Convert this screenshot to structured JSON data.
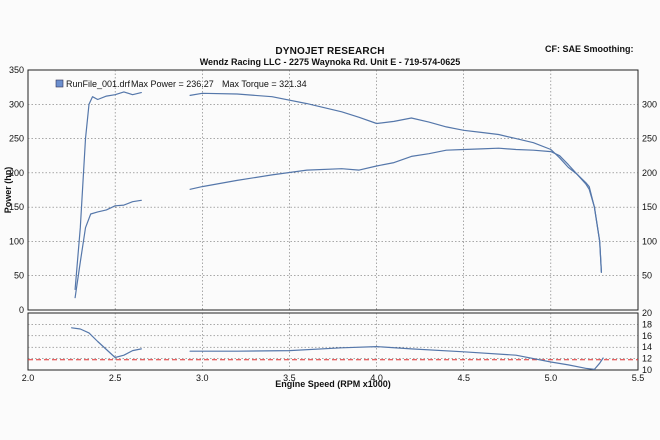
{
  "header": {
    "title": "DYNOJET RESEARCH",
    "subtitle": "Wendz Racing LLC - 2275 Waynoka Rd. Unit E - 719-574-0625",
    "corner": "CF: SAE  Smoothing:"
  },
  "legend": {
    "file_label": "RunFile_001.drf",
    "max_power_label": "Max Power = 236.27",
    "max_torque_label": "Max Torque = 321.34"
  },
  "colors": {
    "trace": "#5577aa",
    "grid": "#555555",
    "afr_target": "#e03030",
    "frame": "#222222"
  },
  "chart_data": [
    {
      "type": "line",
      "title": "",
      "xlabel": "Engine Speed (RPM x1000)",
      "ylabel": "Power (hp)",
      "y2label": "",
      "xlim": [
        2.0,
        5.5
      ],
      "ylim": [
        0,
        350
      ],
      "x_ticks": [
        "2.0",
        "2.5",
        "3.0",
        "3.5",
        "4.0",
        "4.5",
        "5.0",
        "5.5"
      ],
      "y_ticks": [
        "0",
        "50",
        "100",
        "150",
        "200",
        "250",
        "300",
        "350"
      ],
      "y2_ticks": [
        "300",
        "250",
        "200",
        "150",
        "100",
        "50"
      ],
      "grid": true,
      "legend_position": "top-left",
      "series": [
        {
          "name": "",
          "segments": [
            [
              [
                2.27,
                30
              ],
              [
                2.3,
                120
              ],
              [
                2.33,
                250
              ],
              [
                2.35,
                300
              ],
              [
                2.37,
                311
              ],
              [
                2.4,
                307
              ],
              [
                2.45,
                312
              ],
              [
                2.5,
                314
              ],
              [
                2.55,
                318
              ],
              [
                2.6,
                314
              ],
              [
                2.65,
                317
              ]
            ],
            [
              [
                2.93,
                313
              ],
              [
                3.0,
                316
              ],
              [
                3.2,
                315
              ],
              [
                3.4,
                311
              ],
              [
                3.6,
                301
              ],
              [
                3.8,
                289
              ],
              [
                3.9,
                281
              ],
              [
                4.0,
                272
              ],
              [
                4.1,
                275
              ],
              [
                4.2,
                280
              ],
              [
                4.3,
                274
              ],
              [
                4.4,
                267
              ],
              [
                4.5,
                262
              ],
              [
                4.6,
                259
              ],
              [
                4.7,
                256
              ],
              [
                4.8,
                250
              ],
              [
                4.9,
                244
              ],
              [
                5.0,
                234
              ],
              [
                5.05,
                222
              ],
              [
                5.1,
                208
              ],
              [
                5.15,
                198
              ],
              [
                5.2,
                186
              ],
              [
                5.22,
                180
              ],
              [
                5.25,
                150
              ],
              [
                5.28,
                100
              ],
              [
                5.29,
                55
              ]
            ]
          ]
        },
        {
          "name": "",
          "segments": [
            [
              [
                2.27,
                18
              ],
              [
                2.3,
                70
              ],
              [
                2.33,
                120
              ],
              [
                2.36,
                140
              ],
              [
                2.4,
                143
              ],
              [
                2.45,
                146
              ],
              [
                2.5,
                152
              ],
              [
                2.55,
                153
              ],
              [
                2.6,
                158
              ],
              [
                2.65,
                160
              ]
            ],
            [
              [
                2.93,
                176
              ],
              [
                3.0,
                180
              ],
              [
                3.2,
                189
              ],
              [
                3.4,
                197
              ],
              [
                3.6,
                204
              ],
              [
                3.8,
                206
              ],
              [
                3.9,
                204
              ],
              [
                4.0,
                210
              ],
              [
                4.1,
                215
              ],
              [
                4.2,
                224
              ],
              [
                4.3,
                228
              ],
              [
                4.4,
                233
              ],
              [
                4.5,
                234
              ],
              [
                4.6,
                235
              ],
              [
                4.7,
                236
              ],
              [
                4.8,
                234
              ],
              [
                4.9,
                233
              ],
              [
                5.0,
                231
              ],
              [
                5.05,
                225
              ],
              [
                5.1,
                212
              ],
              [
                5.15,
                198
              ],
              [
                5.2,
                184
              ],
              [
                5.22,
                176
              ],
              [
                5.25,
                150
              ],
              [
                5.28,
                100
              ],
              [
                5.29,
                55
              ]
            ]
          ]
        }
      ]
    },
    {
      "type": "line",
      "title": "",
      "xlabel": "",
      "ylabel": "",
      "xlim": [
        2.0,
        5.5
      ],
      "ylim": [
        10,
        20
      ],
      "y_ticks_right": [
        "20",
        "18",
        "16",
        "14",
        "12",
        "10"
      ],
      "grid": true,
      "target_line": 11.8,
      "series": [
        {
          "name": "",
          "segments": [
            [
              [
                2.25,
                17.4
              ],
              [
                2.3,
                17.2
              ],
              [
                2.35,
                16.5
              ],
              [
                2.4,
                15.0
              ],
              [
                2.45,
                13.6
              ],
              [
                2.5,
                12.2
              ],
              [
                2.55,
                12.6
              ],
              [
                2.6,
                13.4
              ],
              [
                2.65,
                13.7
              ]
            ],
            [
              [
                2.93,
                13.3
              ],
              [
                3.2,
                13.3
              ],
              [
                3.5,
                13.4
              ],
              [
                3.8,
                13.9
              ],
              [
                4.0,
                14.1
              ],
              [
                4.2,
                13.7
              ],
              [
                4.5,
                13.2
              ],
              [
                4.8,
                12.6
              ],
              [
                5.0,
                11.4
              ],
              [
                5.1,
                10.9
              ],
              [
                5.2,
                10.3
              ],
              [
                5.25,
                10.1
              ],
              [
                5.28,
                11.2
              ],
              [
                5.3,
                12.1
              ]
            ]
          ]
        }
      ]
    }
  ]
}
